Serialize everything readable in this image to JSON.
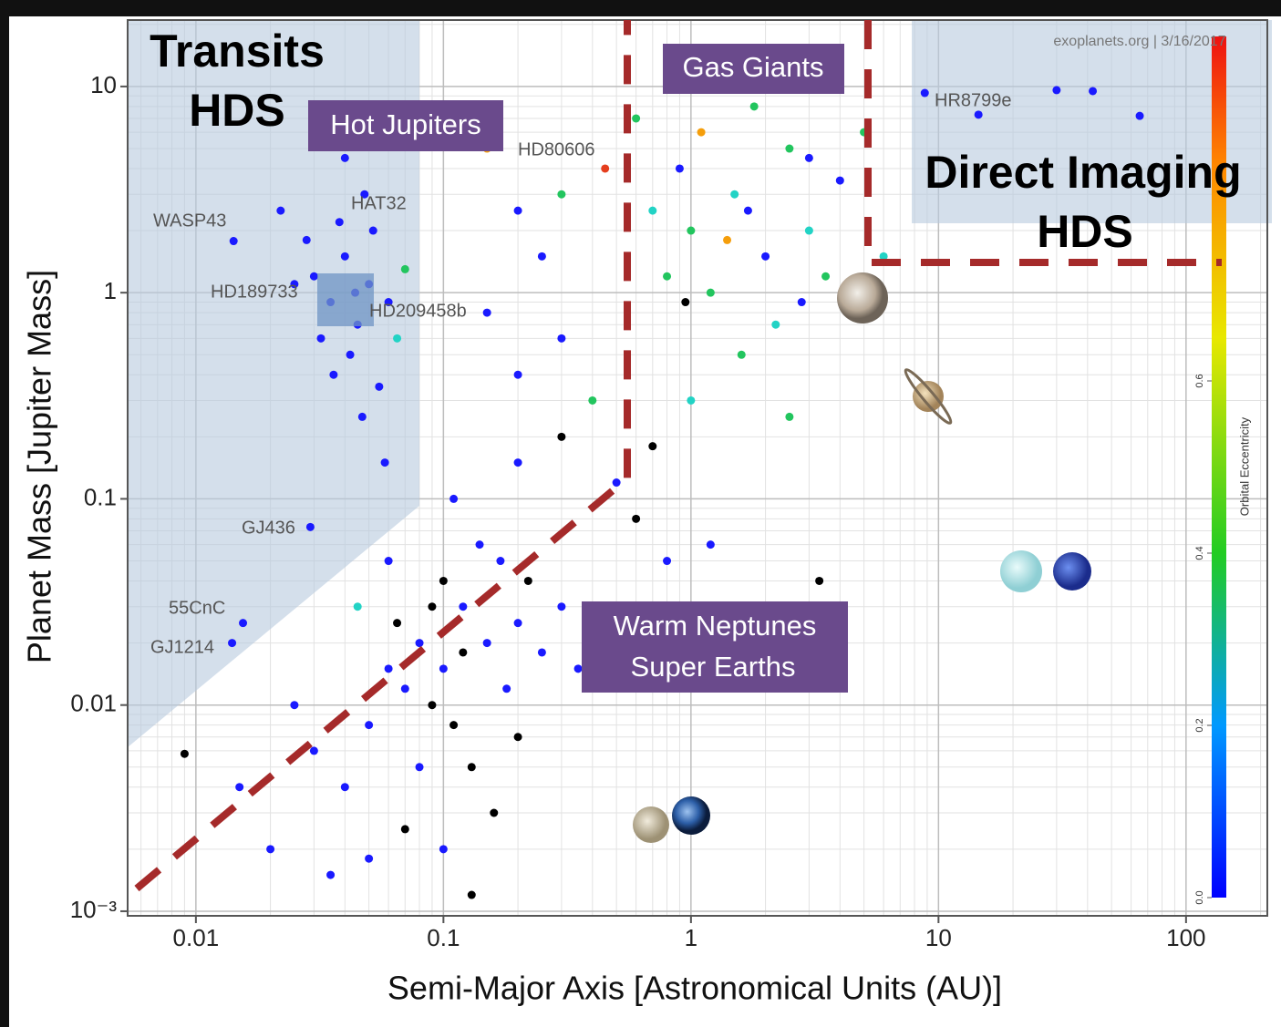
{
  "chart_data": {
    "type": "scatter",
    "x_label": "Semi-Major Axis [Astronomical Units (AU)]",
    "y_label": "Planet Mass [Jupiter Mass]",
    "xscale": "log",
    "yscale": "log",
    "xlim": [
      0.0053,
      213
    ],
    "ylim": [
      0.00095,
      21
    ],
    "xticks": [
      0.01,
      0.1,
      1,
      10,
      100
    ],
    "yticks": [
      {
        "value": 0.001,
        "label": "10⁻³"
      },
      0.01,
      0.1,
      1,
      10
    ],
    "grid": true,
    "colorbar": {
      "label": "Orbital Eccentricity",
      "clim": [
        0,
        1
      ],
      "ticks": [
        {
          "value": 0,
          "label": "0.0"
        },
        0.2,
        0.4,
        0.6
      ]
    },
    "x": [
      0.03,
      0.035,
      0.04,
      0.045,
      0.05,
      0.038,
      0.042,
      0.055,
      0.032,
      0.048,
      0.06,
      0.028,
      0.044,
      0.036,
      0.052,
      0.025,
      0.065,
      0.07,
      0.047,
      0.04,
      0.022,
      0.058,
      0.0142,
      0.029,
      0.0155,
      0.014,
      0.08,
      0.1,
      0.12,
      0.09,
      0.15,
      0.07,
      0.11,
      0.2,
      0.13,
      0.06,
      0.18,
      0.25,
      0.3,
      0.1,
      0.14,
      0.08,
      0.05,
      0.04,
      0.03,
      0.025,
      0.16,
      0.1,
      0.07,
      0.2,
      0.35,
      0.4,
      0.09,
      0.12,
      0.065,
      0.22,
      0.17,
      0.11,
      0.2,
      0.3,
      0.06,
      0.045,
      0.13,
      0.02,
      0.035,
      0.015,
      0.009,
      0.05,
      0.2,
      0.3,
      0.15,
      0.25,
      0.4,
      0.5,
      0.6,
      0.7,
      0.8,
      1.2,
      0.3,
      0.2,
      0.15,
      1,
      1.5,
      2,
      2.5,
      3,
      1.2,
      0.9,
      1.8,
      2.2,
      3.5,
      1.1,
      0.7,
      4,
      1.6,
      2.8,
      0.8,
      1.4,
      5,
      6,
      2,
      1.3,
      3,
      0.6,
      4.5,
      1,
      2.5,
      1.7,
      0.95,
      3.3,
      0.45,
      8.8,
      14.5,
      30,
      42,
      65
    ],
    "values": [
      1.2,
      0.9,
      1.5,
      0.7,
      1.1,
      2.2,
      0.5,
      0.35,
      0.6,
      3.0,
      0.9,
      1.8,
      1.0,
      0.4,
      2.0,
      1.1,
      0.6,
      1.3,
      0.25,
      4.5,
      2.5,
      0.15,
      1.78,
      0.073,
      0.025,
      0.02,
      0.02,
      0.015,
      0.03,
      0.01,
      0.02,
      0.012,
      0.008,
      0.025,
      0.005,
      0.015,
      0.012,
      0.018,
      0.03,
      0.04,
      0.06,
      0.005,
      0.008,
      0.004,
      0.006,
      0.01,
      0.003,
      0.002,
      0.0025,
      0.007,
      0.015,
      0.02,
      0.03,
      0.018,
      0.025,
      0.04,
      0.05,
      0.1,
      0.15,
      0.2,
      0.05,
      0.03,
      0.0012,
      0.002,
      0.0015,
      0.004,
      0.0058,
      0.0018,
      0.4,
      0.6,
      0.8,
      1.5,
      0.3,
      0.12,
      0.08,
      0.18,
      0.05,
      0.06,
      3,
      2.5,
      5,
      2,
      3,
      1.5,
      5,
      2,
      1,
      4,
      8,
      0.7,
      1.2,
      6,
      2.5,
      3.5,
      0.5,
      0.9,
      1.2,
      1.8,
      6,
      1.5,
      10,
      12,
      4.5,
      7,
      0.8,
      0.3,
      0.25,
      2.5,
      0.9,
      0.04,
      4,
      9.3,
      7.3,
      9.6,
      9.5,
      7.2
    ],
    "point_colors": [
      "#1a1aff",
      "#1a1aff",
      "#1a1aff",
      "#1a1aff",
      "#1a1aff",
      "#1a1aff",
      "#1a1aff",
      "#1a1aff",
      "#1a1aff",
      "#1a1aff",
      "#1a1aff",
      "#1a1aff",
      "#1a1aff",
      "#1a1aff",
      "#1a1aff",
      "#1a1aff",
      "#22d3c5",
      "#22c55e",
      "#1a1aff",
      "#1a1aff",
      "#1a1aff",
      "#1a1aff",
      "#1a1aff",
      "#1a1aff",
      "#1a1aff",
      "#1a1aff",
      "#1a1aff",
      "#1a1aff",
      "#1a1aff",
      "#000000",
      "#1a1aff",
      "#1a1aff",
      "#000000",
      "#1a1aff",
      "#000000",
      "#1a1aff",
      "#1a1aff",
      "#1a1aff",
      "#1a1aff",
      "#000000",
      "#1a1aff",
      "#1a1aff",
      "#1a1aff",
      "#1a1aff",
      "#1a1aff",
      "#1a1aff",
      "#000000",
      "#1a1aff",
      "#000000",
      "#000000",
      "#1a1aff",
      "#1a1aff",
      "#000000",
      "#000000",
      "#000000",
      "#000000",
      "#1a1aff",
      "#1a1aff",
      "#1a1aff",
      "#000000",
      "#1a1aff",
      "#22d3c5",
      "#000000",
      "#1a1aff",
      "#1a1aff",
      "#1a1aff",
      "#000000",
      "#1a1aff",
      "#1a1aff",
      "#1a1aff",
      "#1a1aff",
      "#1a1aff",
      "#22c55e",
      "#1a1aff",
      "#000000",
      "#000000",
      "#1a1aff",
      "#1a1aff",
      "#22c55e",
      "#1a1aff",
      "#f59e0b",
      "#22c55e",
      "#22d3c5",
      "#1a1aff",
      "#22c55e",
      "#22d3c5",
      "#22c55e",
      "#1a1aff",
      "#22c55e",
      "#22d3c5",
      "#22c55e",
      "#f59e0b",
      "#22d3c5",
      "#1a1aff",
      "#22c55e",
      "#1a1aff",
      "#22c55e",
      "#f59e0b",
      "#22c55e",
      "#22d3c5",
      "#22c55e",
      "#22d3c5",
      "#1a1aff",
      "#22c55e",
      "#1a1aff",
      "#22d3c5",
      "#22c55e",
      "#1a1aff",
      "#000000",
      "#000000",
      "#e53e1e",
      "#1a1aff",
      "#1a1aff",
      "#1a1aff",
      "#1a1aff",
      "#1a1aff"
    ],
    "annotations": {
      "transits": [
        "Transits",
        "HDS"
      ],
      "hot_jupiters": "Hot Jupiters",
      "gas_giants": "Gas Giants",
      "direct_imaging": [
        "Direct Imaging",
        "HDS"
      ],
      "warm_neptunes": [
        "Warm Neptunes",
        "Super Earths"
      ],
      "source": "exoplanets.org | 3/16/2017",
      "planet_labels": [
        "WASP43",
        "HAT32",
        "HD80606",
        "HD189733",
        "HD209458b",
        "GJ436",
        "55CnC",
        "GJ1214",
        "HR8799e"
      ]
    }
  }
}
